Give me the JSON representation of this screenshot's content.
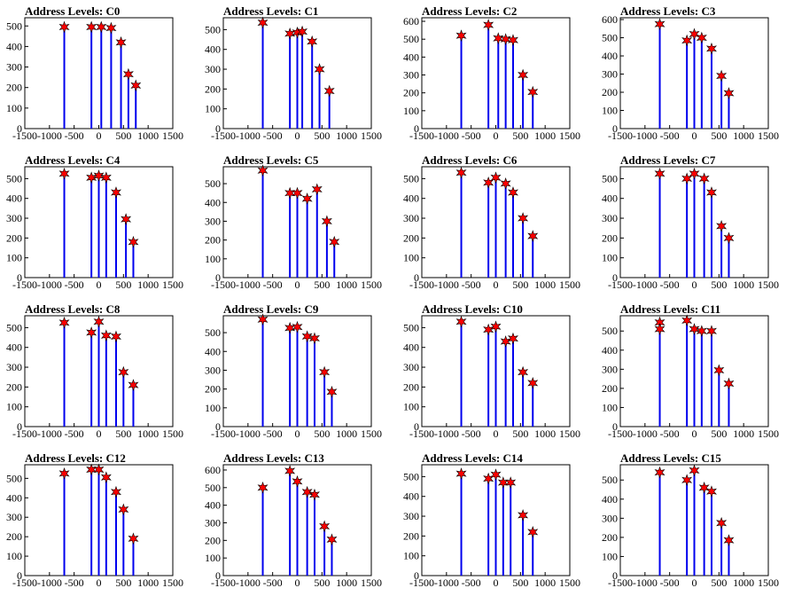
{
  "colors": {
    "bar": "#0000ee",
    "marker": "#ff0000",
    "marker_edge": "#000000",
    "axis": "#000000"
  },
  "chart_data": [
    {
      "type": "bar",
      "title": "Address Levels: C0",
      "xlim": [
        -1500,
        1500
      ],
      "ylim": [
        0,
        540
      ],
      "xticks": [
        -1500,
        -1000,
        -500,
        0,
        500,
        1000,
        1500
      ],
      "yticks": [
        0,
        100,
        200,
        300,
        400,
        500
      ],
      "x": [
        -700,
        -150,
        50,
        250,
        450,
        600,
        750
      ],
      "values": [
        495,
        495,
        495,
        490,
        420,
        265,
        210
      ],
      "markers": {
        "x": [
          -700,
          -150,
          50,
          250,
          450,
          600,
          750
        ],
        "y": [
          495,
          495,
          495,
          490,
          420,
          265,
          210
        ]
      }
    },
    {
      "type": "bar",
      "title": "Address Levels: C1",
      "xlim": [
        -1500,
        1500
      ],
      "ylim": [
        0,
        560
      ],
      "xticks": [
        -1500,
        -1000,
        -500,
        0,
        500,
        1000,
        1500
      ],
      "yticks": [
        0,
        100,
        200,
        300,
        400,
        500
      ],
      "x": [
        -700,
        -150,
        0,
        100,
        300,
        450,
        650
      ],
      "values": [
        535,
        480,
        485,
        490,
        440,
        300,
        190
      ],
      "markers": {
        "x": [
          -700,
          -150,
          0,
          100,
          300,
          450,
          650
        ],
        "y": [
          535,
          480,
          485,
          490,
          440,
          300,
          190
        ]
      }
    },
    {
      "type": "bar",
      "title": "Address Levels: C2",
      "xlim": [
        -1500,
        1500
      ],
      "ylim": [
        0,
        620
      ],
      "xticks": [
        -1500,
        -1000,
        -500,
        0,
        500,
        1000,
        1500
      ],
      "yticks": [
        0,
        100,
        200,
        300,
        400,
        500,
        600
      ],
      "x": [
        -700,
        -150,
        50,
        200,
        350,
        550,
        750
      ],
      "values": [
        520,
        580,
        505,
        500,
        495,
        300,
        205
      ],
      "markers": {
        "x": [
          -700,
          -150,
          50,
          200,
          350,
          550,
          750
        ],
        "y": [
          520,
          580,
          505,
          500,
          495,
          300,
          205
        ]
      }
    },
    {
      "type": "bar",
      "title": "Address Levels: C3",
      "xlim": [
        -1500,
        1500
      ],
      "ylim": [
        0,
        610
      ],
      "xticks": [
        -1500,
        -1000,
        -500,
        0,
        500,
        1000,
        1500
      ],
      "yticks": [
        0,
        100,
        200,
        300,
        400,
        500,
        600
      ],
      "x": [
        -700,
        -150,
        0,
        150,
        350,
        550,
        700
      ],
      "values": [
        575,
        485,
        520,
        500,
        440,
        290,
        195
      ],
      "markers": {
        "x": [
          -700,
          -150,
          0,
          150,
          350,
          550,
          700
        ],
        "y": [
          575,
          485,
          520,
          500,
          440,
          290,
          195
        ]
      }
    },
    {
      "type": "bar",
      "title": "Address Levels: C4",
      "xlim": [
        -1500,
        1500
      ],
      "ylim": [
        0,
        560
      ],
      "xticks": [
        -1500,
        -1000,
        -500,
        0,
        500,
        1000,
        1500
      ],
      "yticks": [
        0,
        100,
        200,
        300,
        400,
        500
      ],
      "x": [
        -700,
        -150,
        0,
        150,
        350,
        550,
        700
      ],
      "values": [
        525,
        505,
        515,
        505,
        430,
        295,
        180
      ],
      "markers": {
        "x": [
          -700,
          -150,
          0,
          150,
          350,
          550,
          700
        ],
        "y": [
          525,
          505,
          515,
          505,
          430,
          295,
          180
        ]
      }
    },
    {
      "type": "bar",
      "title": "Address Levels: C5",
      "xlim": [
        -1500,
        1500
      ],
      "ylim": [
        0,
        590
      ],
      "xticks": [
        -1500,
        -1000,
        -500,
        0,
        500,
        1000,
        1500
      ],
      "yticks": [
        0,
        100,
        200,
        300,
        400,
        500
      ],
      "x": [
        -700,
        -150,
        0,
        200,
        400,
        600,
        750
      ],
      "values": [
        570,
        450,
        450,
        420,
        470,
        300,
        190
      ],
      "markers": {
        "x": [
          -700,
          -150,
          0,
          200,
          400,
          600,
          750
        ],
        "y": [
          570,
          450,
          450,
          420,
          470,
          300,
          190
        ]
      }
    },
    {
      "type": "bar",
      "title": "Address Levels: C6",
      "xlim": [
        -1500,
        1500
      ],
      "ylim": [
        0,
        560
      ],
      "xticks": [
        -1500,
        -1000,
        -500,
        0,
        500,
        1000,
        1500
      ],
      "yticks": [
        0,
        100,
        200,
        300,
        400,
        500
      ],
      "x": [
        -700,
        -150,
        0,
        200,
        350,
        550,
        750
      ],
      "values": [
        530,
        480,
        505,
        475,
        430,
        300,
        210
      ],
      "markers": {
        "x": [
          -700,
          -150,
          0,
          200,
          350,
          550,
          750
        ],
        "y": [
          530,
          480,
          505,
          475,
          430,
          300,
          210
        ]
      }
    },
    {
      "type": "bar",
      "title": "Address Levels: C7",
      "xlim": [
        -1500,
        1500
      ],
      "ylim": [
        0,
        560
      ],
      "xticks": [
        -1500,
        -1000,
        -500,
        0,
        500,
        1000,
        1500
      ],
      "yticks": [
        0,
        100,
        200,
        300,
        400,
        500
      ],
      "x": [
        -700,
        -150,
        0,
        200,
        350,
        550,
        700
      ],
      "values": [
        525,
        500,
        525,
        500,
        430,
        260,
        200
      ],
      "markers": {
        "x": [
          -700,
          -150,
          0,
          200,
          350,
          550,
          700
        ],
        "y": [
          525,
          500,
          525,
          500,
          430,
          260,
          200
        ]
      }
    },
    {
      "type": "bar",
      "title": "Address Levels: C8",
      "xlim": [
        -1500,
        1500
      ],
      "ylim": [
        0,
        560
      ],
      "xticks": [
        -1500,
        -1000,
        -500,
        0,
        500,
        1000,
        1500
      ],
      "yticks": [
        0,
        100,
        200,
        300,
        400,
        500
      ],
      "x": [
        -700,
        -150,
        0,
        150,
        350,
        500,
        700
      ],
      "values": [
        525,
        475,
        530,
        460,
        455,
        275,
        210
      ],
      "markers": {
        "x": [
          -700,
          -150,
          0,
          150,
          350,
          500,
          700
        ],
        "y": [
          525,
          475,
          530,
          460,
          455,
          275,
          210
        ]
      }
    },
    {
      "type": "bar",
      "title": "Address Levels: C9",
      "xlim": [
        -1500,
        1500
      ],
      "ylim": [
        0,
        590
      ],
      "xticks": [
        -1500,
        -1000,
        -500,
        0,
        500,
        1000,
        1500
      ],
      "yticks": [
        0,
        100,
        200,
        300,
        400,
        500
      ],
      "x": [
        -700,
        -150,
        0,
        200,
        350,
        550,
        700
      ],
      "values": [
        570,
        525,
        530,
        480,
        470,
        290,
        185
      ],
      "markers": {
        "x": [
          -700,
          -150,
          0,
          200,
          350,
          550,
          700
        ],
        "y": [
          570,
          525,
          530,
          480,
          470,
          290,
          185
        ]
      }
    },
    {
      "type": "bar",
      "title": "Address Levels: C10",
      "xlim": [
        -1500,
        1500
      ],
      "ylim": [
        0,
        560
      ],
      "xticks": [
        -1500,
        -1000,
        -500,
        0,
        500,
        1000,
        1500
      ],
      "yticks": [
        0,
        100,
        200,
        300,
        400,
        500
      ],
      "x": [
        -700,
        -150,
        0,
        200,
        350,
        550,
        750
      ],
      "values": [
        530,
        490,
        505,
        430,
        445,
        275,
        220
      ],
      "markers": {
        "x": [
          -700,
          -150,
          0,
          200,
          350,
          550,
          750
        ],
        "y": [
          530,
          490,
          505,
          430,
          445,
          275,
          220
        ]
      }
    },
    {
      "type": "bar",
      "title": "Address Levels: C11",
      "xlim": [
        -1500,
        1500
      ],
      "ylim": [
        0,
        580
      ],
      "xticks": [
        -1500,
        -1000,
        -500,
        0,
        500,
        1000,
        1500
      ],
      "yticks": [
        0,
        100,
        200,
        300,
        400,
        500
      ],
      "x": [
        -700,
        -150,
        0,
        150,
        350,
        500,
        700
      ],
      "values": [
        510,
        555,
        510,
        500,
        500,
        295,
        225
      ],
      "markers": {
        "x": [
          -700,
          -700,
          -150,
          0,
          150,
          350,
          500,
          700
        ],
        "y": [
          545,
          510,
          555,
          510,
          500,
          500,
          295,
          225
        ]
      }
    },
    {
      "type": "bar",
      "title": "Address Levels: C12",
      "xlim": [
        -1500,
        1500
      ],
      "ylim": [
        0,
        570
      ],
      "xticks": [
        -1500,
        -1000,
        -500,
        0,
        500,
        1000,
        1500
      ],
      "yticks": [
        0,
        100,
        200,
        300,
        400,
        500
      ],
      "x": [
        -700,
        -150,
        0,
        150,
        350,
        500,
        700
      ],
      "values": [
        525,
        545,
        545,
        505,
        430,
        340,
        190
      ],
      "markers": {
        "x": [
          -700,
          -150,
          0,
          150,
          350,
          500,
          700
        ],
        "y": [
          525,
          545,
          545,
          505,
          430,
          340,
          190
        ]
      }
    },
    {
      "type": "bar",
      "title": "Address Levels: C13",
      "xlim": [
        -1500,
        1500
      ],
      "ylim": [
        0,
        630
      ],
      "xticks": [
        -1500,
        -1000,
        -500,
        0,
        500,
        1000,
        1500
      ],
      "yticks": [
        0,
        100,
        200,
        300,
        400,
        500,
        600
      ],
      "x": [
        -700,
        -150,
        0,
        200,
        350,
        550,
        700
      ],
      "values": [
        500,
        595,
        535,
        475,
        460,
        280,
        205
      ],
      "markers": {
        "x": [
          -700,
          -150,
          0,
          200,
          350,
          550,
          700
        ],
        "y": [
          500,
          595,
          535,
          475,
          460,
          280,
          205
        ]
      }
    },
    {
      "type": "bar",
      "title": "Address Levels: C14",
      "xlim": [
        -1500,
        1500
      ],
      "ylim": [
        0,
        560
      ],
      "xticks": [
        -1500,
        -1000,
        -500,
        0,
        500,
        1000,
        1500
      ],
      "yticks": [
        0,
        100,
        200,
        300,
        400,
        500
      ],
      "x": [
        -700,
        -150,
        0,
        150,
        300,
        550,
        750
      ],
      "values": [
        515,
        490,
        510,
        470,
        470,
        305,
        220
      ],
      "markers": {
        "x": [
          -700,
          -150,
          0,
          150,
          300,
          550,
          750
        ],
        "y": [
          515,
          490,
          510,
          470,
          470,
          305,
          220
        ]
      }
    },
    {
      "type": "bar",
      "title": "Address Levels: C15",
      "xlim": [
        -1500,
        1500
      ],
      "ylim": [
        0,
        580
      ],
      "xticks": [
        -1500,
        -1000,
        -500,
        0,
        500,
        1000,
        1500
      ],
      "yticks": [
        0,
        100,
        200,
        300,
        400,
        500
      ],
      "x": [
        -700,
        -150,
        0,
        200,
        350,
        550,
        700
      ],
      "values": [
        540,
        500,
        550,
        460,
        440,
        275,
        185
      ],
      "markers": {
        "x": [
          -700,
          -150,
          0,
          200,
          350,
          550,
          700
        ],
        "y": [
          540,
          500,
          550,
          460,
          440,
          275,
          185
        ]
      }
    }
  ]
}
